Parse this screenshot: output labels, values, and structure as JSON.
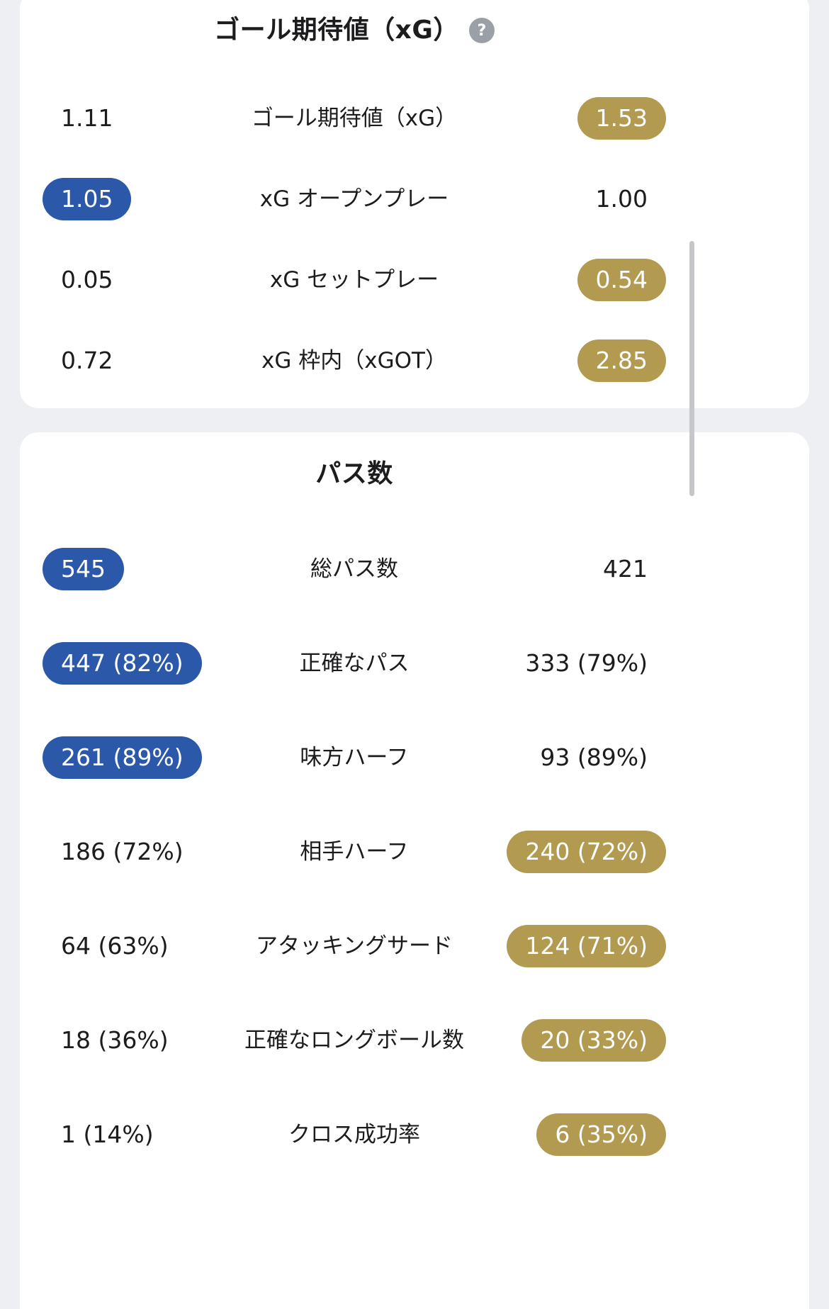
{
  "page": {
    "background": "#edeff2"
  },
  "colors": {
    "home_highlight": "#2b58a8",
    "away_highlight": "#b29a50"
  },
  "help_icon": {
    "glyph": "?"
  },
  "cards": [
    {
      "title": "ゴール期待値（xG）",
      "has_help": true,
      "rows": [
        {
          "home": "1.11",
          "label": "ゴール期待値（xG）",
          "away": "1.53",
          "home_hl": false,
          "away_hl": true
        },
        {
          "home": "1.05",
          "label": "xG オープンプレー",
          "away": "1.00",
          "home_hl": true,
          "away_hl": false
        },
        {
          "home": "0.05",
          "label": "xG セットプレー",
          "away": "0.54",
          "home_hl": false,
          "away_hl": true
        },
        {
          "home": "0.72",
          "label": "xG 枠内（xGOT）",
          "away": "2.85",
          "home_hl": false,
          "away_hl": true
        }
      ]
    },
    {
      "title": "パス数",
      "has_help": false,
      "rows": [
        {
          "home": "545",
          "label": "総パス数",
          "away": "421",
          "home_hl": true,
          "away_hl": false
        },
        {
          "home": "447 (82%)",
          "label": "正確なパス",
          "away": "333 (79%)",
          "home_hl": true,
          "away_hl": false
        },
        {
          "home": "261 (89%)",
          "label": "味方ハーフ",
          "away": "93 (89%)",
          "home_hl": true,
          "away_hl": false
        },
        {
          "home": "186 (72%)",
          "label": "相手ハーフ",
          "away": "240 (72%)",
          "home_hl": false,
          "away_hl": true
        },
        {
          "home": "64 (63%)",
          "label": "アタッキングサード",
          "away": "124 (71%)",
          "home_hl": false,
          "away_hl": true
        },
        {
          "home": "18 (36%)",
          "label": "正確なロングボール数",
          "away": "20 (33%)",
          "home_hl": false,
          "away_hl": true
        },
        {
          "home": "1 (14%)",
          "label": "クロス成功率",
          "away": "6 (35%)",
          "home_hl": false,
          "away_hl": true
        }
      ]
    }
  ]
}
